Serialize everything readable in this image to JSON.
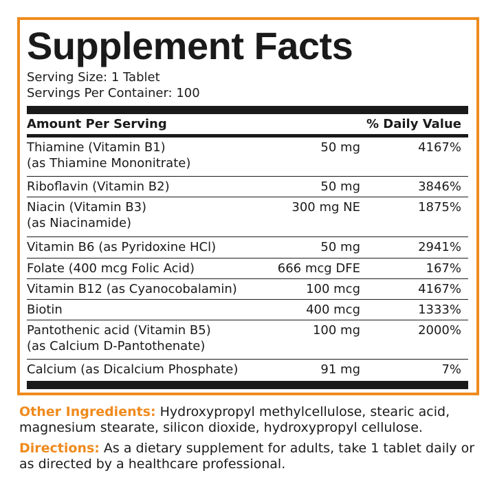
{
  "title": "Supplement Facts",
  "serving_size": "Serving Size: 1 Tablet",
  "servings_per_container": "Servings Per Container: 100",
  "header": {
    "amount": "Amount Per Serving",
    "daily_value": "% Daily Value"
  },
  "rows": [
    {
      "name": "Thiamine (Vitamin B1)",
      "sub": "(as Thiamine Mononitrate)",
      "amount": "50 mg",
      "dv": "4167%"
    },
    {
      "name": "Riboflavin (Vitamin B2)",
      "sub": "",
      "amount": "50 mg",
      "dv": "3846%"
    },
    {
      "name": "Niacin (Vitamin B3)",
      "sub": "(as Niacinamide)",
      "amount": "300 mg NE",
      "dv": "1875%"
    },
    {
      "name": "Vitamin B6 (as Pyridoxine HCl)",
      "sub": "",
      "amount": "50 mg",
      "dv": "2941%"
    },
    {
      "name": "Folate (400 mcg Folic Acid)",
      "sub": "",
      "amount": "666 mcg DFE",
      "dv": "167%"
    },
    {
      "name": "Vitamin B12 (as Cyanocobalamin)",
      "sub": "",
      "amount": "100 mcg",
      "dv": "4167%"
    },
    {
      "name": "Biotin",
      "sub": "",
      "amount": "400 mcg",
      "dv": "1333%"
    },
    {
      "name": "Pantothenic acid (Vitamin B5)",
      "sub": "(as Calcium D-Pantothenate)",
      "amount": "100 mg",
      "dv": "2000%"
    },
    {
      "name": "Calcium (as Dicalcium Phosphate)",
      "sub": "",
      "amount": "91 mg",
      "dv": "7%"
    }
  ],
  "other_ingredients": {
    "label": "Other Ingredients:",
    "text": " Hydroxypropyl methylcellulose, stearic acid, magnesium stearate, silicon dioxide, hydroxypropyl cellulose."
  },
  "directions": {
    "label": "Directions:",
    "text": " As a dietary supplement for adults, take 1 tablet daily or as directed by a healthcare professional."
  },
  "colors": {
    "accent": "#f08a1c",
    "text": "#1a1a1a"
  }
}
